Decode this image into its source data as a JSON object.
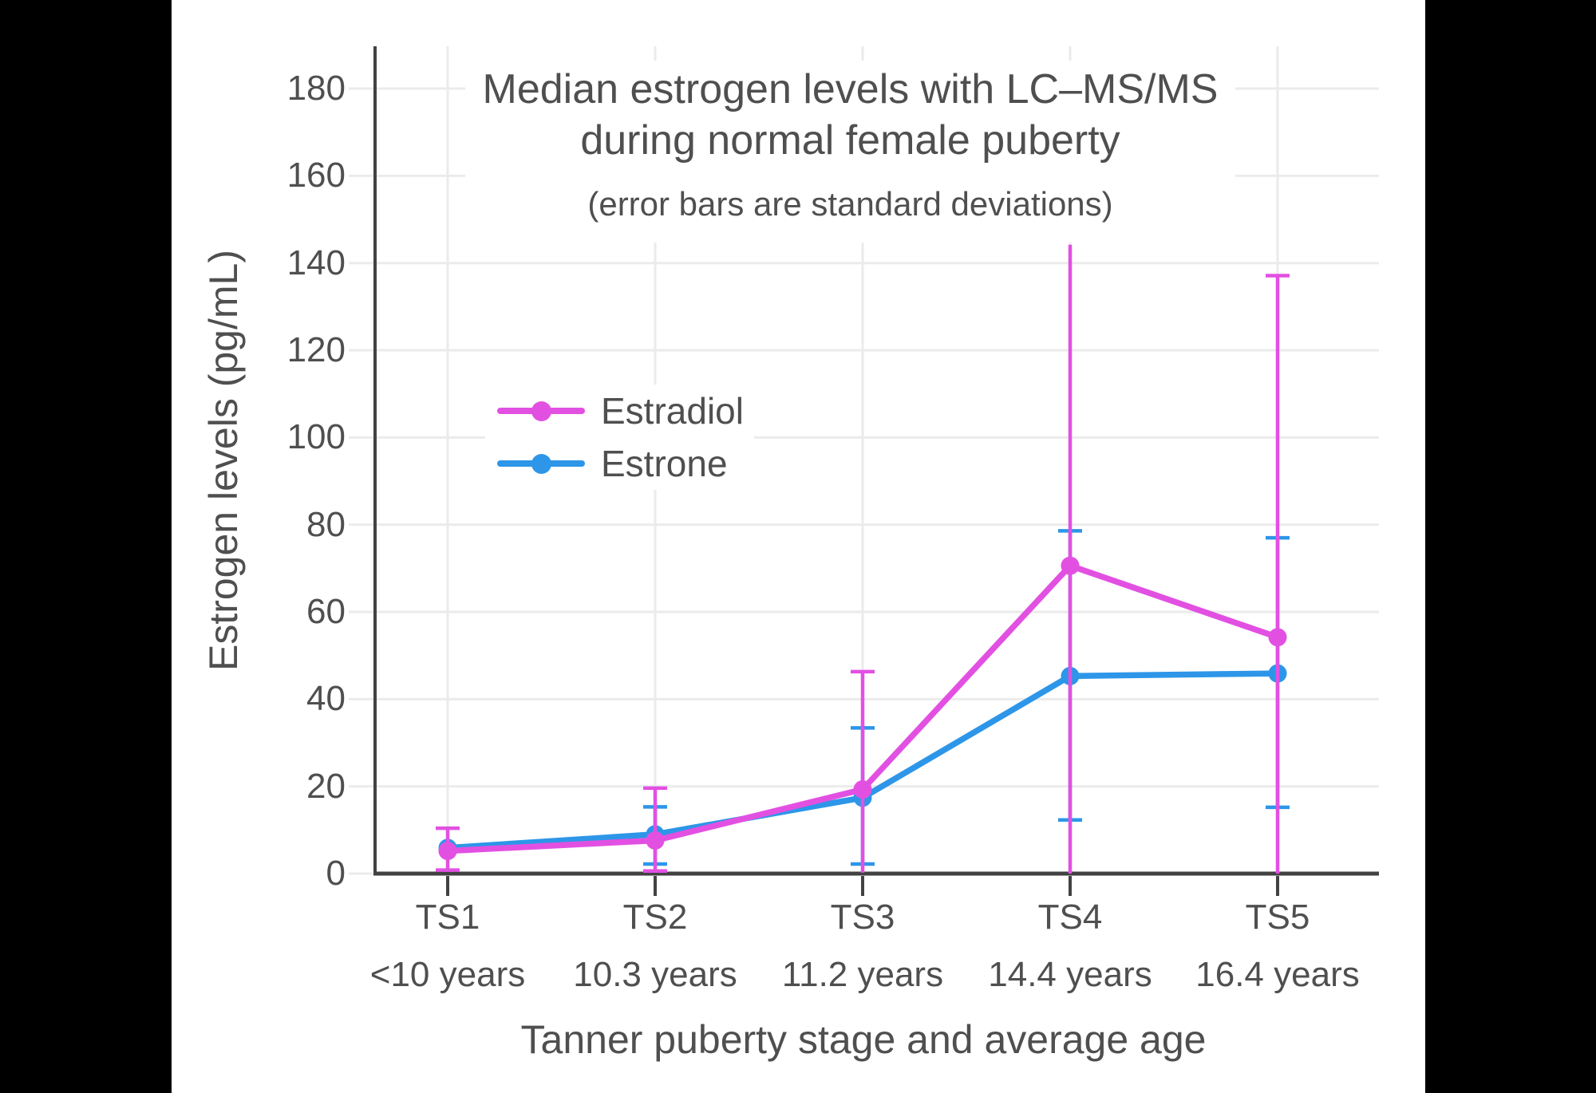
{
  "chart_data": {
    "type": "line",
    "title": "Median estrogen levels with LC–MS/MS",
    "title_line2": "during normal female puberty",
    "subtitle": "(error bars are standard deviations)",
    "xlabel": "Tanner puberty stage and average age",
    "ylabel": "Estrogen levels (pg/mL)",
    "categories": [
      {
        "stage": "TS1",
        "age": "<10 years"
      },
      {
        "stage": "TS2",
        "age": "10.3 years"
      },
      {
        "stage": "TS3",
        "age": "11.2 years"
      },
      {
        "stage": "TS4",
        "age": "14.4 years"
      },
      {
        "stage": "TS5",
        "age": "16.4 years"
      }
    ],
    "y_axis": {
      "min": 0,
      "max": 190,
      "tick_step": 20,
      "tick_values": [
        0,
        20,
        40,
        60,
        80,
        100,
        120,
        140,
        160,
        180
      ],
      "gridlines": true
    },
    "legend": {
      "position": "inside-upper-left",
      "entries": [
        "Estradiol",
        "Estrone"
      ]
    },
    "series": [
      {
        "name": "Estradiol",
        "color": "#e250e2",
        "points": [
          {
            "stage": "TS1",
            "median": 5.2,
            "sd_low": 0.8,
            "sd_high": 10.4,
            "cap_low": true,
            "cap_high": true
          },
          {
            "stage": "TS2",
            "median": 7.6,
            "sd_low": 0.6,
            "sd_high": 19.6,
            "cap_low": true,
            "cap_high": true
          },
          {
            "stage": "TS3",
            "median": 19.3,
            "sd_low": 0.2,
            "sd_high": 46.3,
            "cap_low": false,
            "cap_high": true
          },
          {
            "stage": "TS4",
            "median": 70.6,
            "sd_low": 0.0,
            "sd_high": 144.2,
            "cap_low": false,
            "cap_high": false
          },
          {
            "stage": "TS5",
            "median": 54.2,
            "sd_low": 0.0,
            "sd_high": 137.1,
            "cap_low": false,
            "cap_high": true
          }
        ]
      },
      {
        "name": "Estrone",
        "color": "#2d96e8",
        "points": [
          {
            "stage": "TS1",
            "median": 5.9,
            "sd_low": null,
            "sd_high": null,
            "cap_low": false,
            "cap_high": false
          },
          {
            "stage": "TS2",
            "median": 9.0,
            "sd_low": 2.2,
            "sd_high": 15.3,
            "cap_low": true,
            "cap_high": true
          },
          {
            "stage": "TS3",
            "median": 17.4,
            "sd_low": 2.2,
            "sd_high": 33.4,
            "cap_low": true,
            "cap_high": true
          },
          {
            "stage": "TS4",
            "median": 45.3,
            "sd_low": 12.3,
            "sd_high": 78.6,
            "cap_low": true,
            "cap_high": true
          },
          {
            "stage": "TS5",
            "median": 45.9,
            "sd_low": 15.2,
            "sd_high": 77.0,
            "cap_low": true,
            "cap_high": true
          }
        ]
      }
    ]
  },
  "colors": {
    "text": "#4f4f4f",
    "axis_line": "#424242",
    "gridline": "#ebebeb",
    "plot_background": "#ffffff",
    "frame_background": "#000000"
  }
}
